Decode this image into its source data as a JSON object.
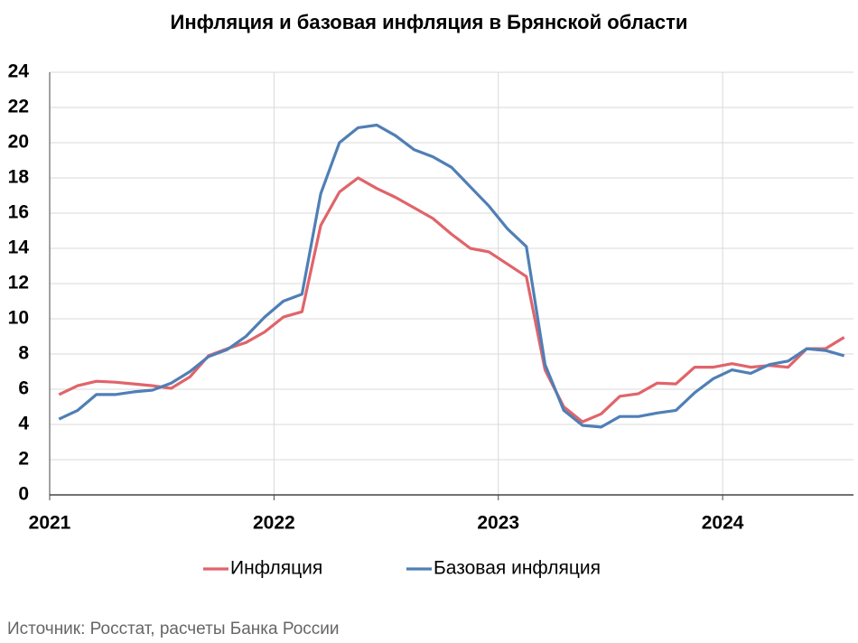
{
  "chart_data": {
    "type": "line",
    "title": "Инфляция и базовая инфляция в Брянской области",
    "source": "Источник: Росстат, расчеты Банка России",
    "categories": [
      "2021",
      null,
      null,
      null,
      null,
      null,
      null,
      null,
      null,
      null,
      null,
      null,
      "2022",
      null,
      null,
      null,
      null,
      null,
      null,
      null,
      null,
      null,
      null,
      null,
      "2023",
      null,
      null,
      null,
      null,
      null,
      null,
      null,
      null,
      null,
      null,
      null,
      "2024",
      null,
      null,
      null,
      null,
      null,
      null
    ],
    "series": [
      {
        "name": "Инфляция",
        "color": "#e0646a",
        "values": [
          5.7,
          6.2,
          6.45,
          6.4,
          6.3,
          6.2,
          6.05,
          6.7,
          7.9,
          8.3,
          8.65,
          9.25,
          10.1,
          10.4,
          15.3,
          17.2,
          18.0,
          17.4,
          16.9,
          16.3,
          15.7,
          14.8,
          14.0,
          13.8,
          13.1,
          12.4,
          7.1,
          5.0,
          4.15,
          4.6,
          5.6,
          5.75,
          6.35,
          6.3,
          7.25,
          7.25,
          7.45,
          7.25,
          7.35,
          7.25,
          8.3,
          8.3,
          8.95
        ]
      },
      {
        "name": "Базовая инфляция",
        "color": "#4f7fb5",
        "values": [
          4.3,
          4.8,
          5.7,
          5.7,
          5.85,
          5.95,
          6.35,
          7.0,
          7.85,
          8.25,
          9.0,
          10.1,
          11.0,
          11.4,
          17.1,
          20.0,
          20.85,
          21.0,
          20.4,
          19.6,
          19.2,
          18.6,
          17.5,
          16.4,
          15.1,
          14.1,
          7.4,
          4.8,
          3.95,
          3.85,
          4.45,
          4.45,
          4.65,
          4.8,
          5.8,
          6.6,
          7.1,
          6.9,
          7.4,
          7.6,
          8.3,
          8.2,
          7.9
        ]
      }
    ],
    "ylim": [
      0,
      24
    ],
    "yticks": [
      0,
      2,
      4,
      6,
      8,
      10,
      12,
      14,
      16,
      18,
      20,
      22,
      24
    ],
    "grid": true,
    "legend": "bottom"
  }
}
